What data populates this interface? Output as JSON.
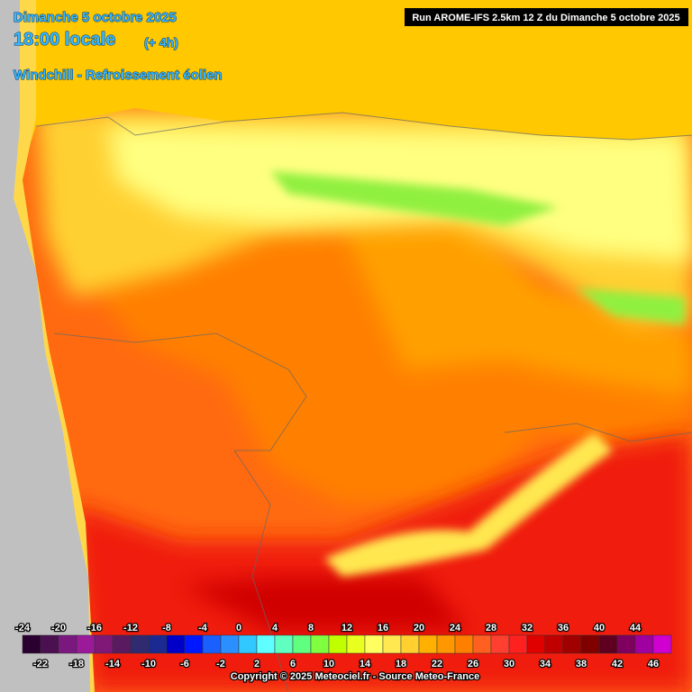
{
  "header": {
    "date": "Dimanche 5 octobre 2025",
    "time": "18:00 locale",
    "offset": "(+ 4h)",
    "parameter": "Windchill - Refroissement éolien",
    "run": "Run AROME-IFS 2.5km 12 Z du Dimanche 5 octobre 2025"
  },
  "legend": {
    "ticks": [
      -24,
      -22,
      -20,
      -18,
      -16,
      -14,
      -12,
      -10,
      -8,
      -6,
      -4,
      -2,
      0,
      2,
      4,
      6,
      8,
      10,
      12,
      14,
      16,
      18,
      20,
      22,
      24,
      26,
      28,
      30,
      32,
      34,
      36,
      38,
      40,
      42,
      44,
      46
    ],
    "colors": [
      "#2a0030",
      "#4a1050",
      "#7a1880",
      "#9a1a9a",
      "#801878",
      "#5a1a60",
      "#302a70",
      "#1a2a90",
      "#0000c8",
      "#0018ff",
      "#1a60ff",
      "#2a90ff",
      "#30c8ff",
      "#60ffff",
      "#60ffc0",
      "#60ff80",
      "#80ff40",
      "#c0ff00",
      "#e8ff20",
      "#ffff60",
      "#ffe850",
      "#ffd030",
      "#ffb000",
      "#ff9800",
      "#ff8000",
      "#ff6020",
      "#ff4030",
      "#ff2020",
      "#e00000",
      "#c00000",
      "#a00000",
      "#800000",
      "#600020",
      "#800060",
      "#a000a0",
      "#d000d0"
    ]
  },
  "footer": {
    "copyright": "Copyright © 2025 Meteociel.fr - Source Meteo-France"
  }
}
